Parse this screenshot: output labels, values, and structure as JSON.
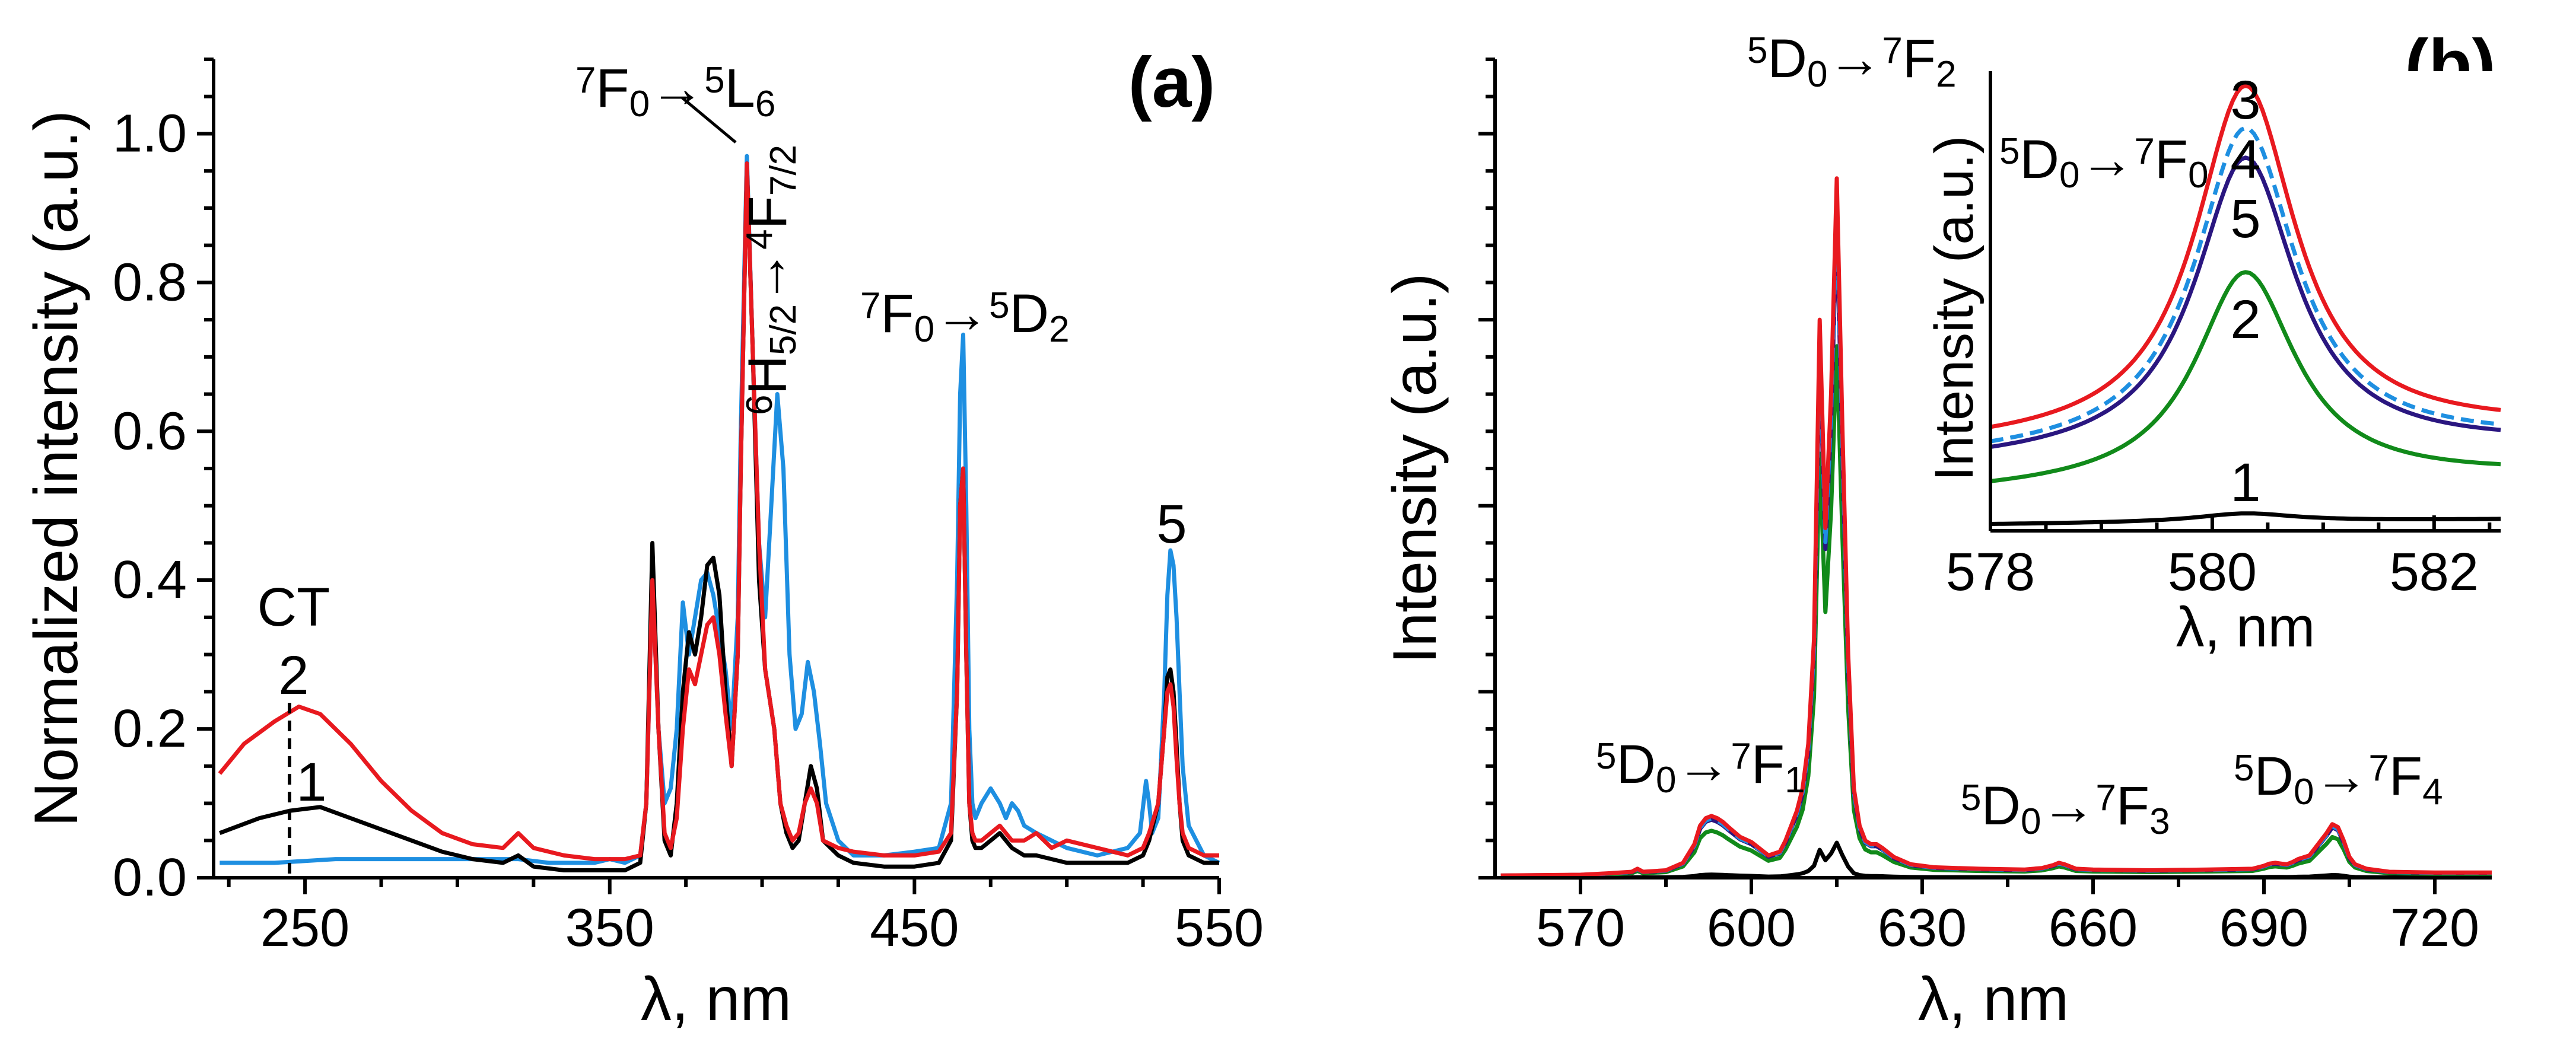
{
  "chart_data": [
    {
      "type": "line",
      "panel_label": "(a)",
      "xlabel": "λ, nm",
      "ylabel": "Normalized intensity (a.u.)",
      "xlim": [
        220,
        550
      ],
      "ylim": [
        0,
        1.1
      ],
      "xticks": [
        "250",
        "350",
        "450",
        "550"
      ],
      "yticks": [
        "0.0",
        "0.2",
        "0.4",
        "0.6",
        "0.8",
        "1.0"
      ],
      "annotations": {
        "ct": "CT",
        "curve_label_2": "2",
        "curve_label_1": "1",
        "curve_label_5": "5",
        "peak_main": "7F0→5L6",
        "peak_mid": "6H5/2→4F7/2",
        "peak_right": "7F0→5D2"
      },
      "colors": {
        "1": "#000000",
        "2": "#e8191f",
        "5": "#1e8fe1"
      },
      "series": [
        {
          "name": "1",
          "x": [
            222,
            235,
            245,
            255,
            265,
            275,
            285,
            295,
            305,
            315,
            320,
            325,
            335,
            345,
            355,
            360,
            362,
            364,
            366,
            368,
            370,
            372,
            374,
            376,
            378,
            380,
            382,
            384,
            386,
            388,
            390,
            392,
            393,
            395,
            397,
            399,
            401,
            404,
            406,
            408,
            410,
            412,
            414,
            416,
            418,
            420,
            425,
            430,
            440,
            450,
            458,
            462,
            464,
            465,
            466,
            467,
            468,
            469,
            470,
            472,
            475,
            478,
            482,
            486,
            490,
            495,
            500,
            510,
            520,
            525,
            527,
            530,
            532,
            533,
            534,
            535,
            536,
            537,
            538,
            540,
            545,
            550
          ],
          "y": [
            0.06,
            0.08,
            0.09,
            0.095,
            0.08,
            0.065,
            0.05,
            0.035,
            0.025,
            0.02,
            0.03,
            0.015,
            0.01,
            0.01,
            0.01,
            0.02,
            0.1,
            0.45,
            0.2,
            0.05,
            0.03,
            0.1,
            0.25,
            0.33,
            0.3,
            0.35,
            0.42,
            0.43,
            0.38,
            0.25,
            0.15,
            0.3,
            0.55,
            0.96,
            0.7,
            0.4,
            0.28,
            0.2,
            0.1,
            0.06,
            0.04,
            0.05,
            0.1,
            0.15,
            0.12,
            0.05,
            0.03,
            0.02,
            0.015,
            0.015,
            0.02,
            0.05,
            0.25,
            0.5,
            0.55,
            0.3,
            0.1,
            0.05,
            0.04,
            0.04,
            0.05,
            0.06,
            0.04,
            0.03,
            0.03,
            0.025,
            0.02,
            0.02,
            0.02,
            0.03,
            0.05,
            0.1,
            0.2,
            0.27,
            0.28,
            0.25,
            0.18,
            0.1,
            0.05,
            0.03,
            0.02,
            0.02
          ]
        },
        {
          "name": "2",
          "x": [
            222,
            230,
            240,
            248,
            255,
            265,
            275,
            285,
            295,
            305,
            315,
            320,
            325,
            335,
            345,
            355,
            360,
            362,
            364,
            366,
            368,
            370,
            372,
            374,
            376,
            378,
            380,
            382,
            384,
            386,
            388,
            390,
            392,
            393,
            395,
            397,
            399,
            401,
            404,
            406,
            408,
            410,
            412,
            414,
            416,
            418,
            420,
            425,
            430,
            440,
            450,
            458,
            462,
            464,
            465,
            466,
            467,
            468,
            469,
            470,
            472,
            475,
            478,
            482,
            486,
            490,
            495,
            500,
            510,
            520,
            525,
            527,
            530,
            532,
            533,
            534,
            535,
            536,
            537,
            538,
            540,
            545,
            550
          ],
          "y": [
            0.14,
            0.18,
            0.21,
            0.23,
            0.22,
            0.18,
            0.13,
            0.09,
            0.06,
            0.045,
            0.04,
            0.06,
            0.04,
            0.03,
            0.025,
            0.025,
            0.03,
            0.1,
            0.4,
            0.2,
            0.06,
            0.04,
            0.08,
            0.2,
            0.28,
            0.26,
            0.3,
            0.34,
            0.35,
            0.3,
            0.22,
            0.15,
            0.3,
            0.55,
            0.96,
            0.7,
            0.45,
            0.28,
            0.2,
            0.1,
            0.07,
            0.05,
            0.06,
            0.1,
            0.12,
            0.1,
            0.05,
            0.04,
            0.035,
            0.03,
            0.03,
            0.035,
            0.06,
            0.25,
            0.5,
            0.55,
            0.3,
            0.1,
            0.06,
            0.05,
            0.05,
            0.06,
            0.07,
            0.05,
            0.05,
            0.06,
            0.04,
            0.05,
            0.04,
            0.03,
            0.04,
            0.06,
            0.1,
            0.2,
            0.25,
            0.26,
            0.23,
            0.16,
            0.1,
            0.06,
            0.04,
            0.03,
            0.03
          ]
        },
        {
          "name": "5",
          "x": [
            222,
            240,
            260,
            280,
            300,
            320,
            330,
            345,
            350,
            355,
            360,
            362,
            364,
            366,
            368,
            370,
            372,
            374,
            376,
            378,
            380,
            382,
            384,
            386,
            388,
            390,
            392,
            393,
            395,
            397,
            399,
            401,
            403,
            405,
            407,
            409,
            411,
            413,
            415,
            417,
            419,
            421,
            425,
            430,
            440,
            450,
            458,
            462,
            464,
            465,
            466,
            467,
            468,
            469,
            470,
            472,
            475,
            478,
            480,
            482,
            484,
            486,
            490,
            495,
            500,
            510,
            520,
            524,
            526,
            527,
            528,
            530,
            532,
            533,
            534,
            535,
            536,
            537,
            538,
            540,
            545,
            550
          ],
          "y": [
            0.02,
            0.02,
            0.025,
            0.025,
            0.025,
            0.025,
            0.02,
            0.02,
            0.025,
            0.02,
            0.03,
            0.1,
            0.4,
            0.2,
            0.1,
            0.12,
            0.2,
            0.37,
            0.3,
            0.35,
            0.4,
            0.41,
            0.38,
            0.33,
            0.28,
            0.2,
            0.35,
            0.6,
            0.97,
            0.7,
            0.45,
            0.35,
            0.5,
            0.65,
            0.55,
            0.3,
            0.2,
            0.22,
            0.29,
            0.25,
            0.18,
            0.1,
            0.05,
            0.03,
            0.03,
            0.035,
            0.04,
            0.1,
            0.4,
            0.65,
            0.73,
            0.5,
            0.2,
            0.1,
            0.08,
            0.1,
            0.12,
            0.1,
            0.08,
            0.1,
            0.09,
            0.07,
            0.06,
            0.05,
            0.04,
            0.03,
            0.04,
            0.06,
            0.13,
            0.1,
            0.06,
            0.08,
            0.25,
            0.38,
            0.44,
            0.42,
            0.35,
            0.25,
            0.15,
            0.07,
            0.03,
            0.02
          ]
        }
      ]
    },
    {
      "type": "line",
      "panel_label": "(b)",
      "xlabel": "λ, nm",
      "ylabel": "Intensity (a.u.)",
      "xlim": [
        555,
        730
      ],
      "ylim": [
        0,
        1.1
      ],
      "xticks": [
        "570",
        "600",
        "630",
        "660",
        "690",
        "720"
      ],
      "annotations": {
        "f2": "5D0→7F2",
        "f1": "5D0→7F1",
        "f3": "5D0→7F3",
        "f4": "5D0→7F4"
      },
      "colors": {
        "1": "#000000",
        "2": "#118a1a",
        "3": "#e8191f",
        "4": "#1e8fe1",
        "5": "#2a1680"
      },
      "shape": {
        "x": [
          556,
          570,
          575,
          579,
          580,
          581,
          585,
          588,
          590,
          591,
          592,
          593,
          594,
          595,
          596,
          598,
          600,
          603,
          605,
          606,
          607,
          608,
          609,
          610,
          611,
          612,
          613,
          614,
          615,
          616,
          617,
          618,
          619,
          620,
          621,
          622,
          623,
          625,
          628,
          632,
          640,
          648,
          651,
          653,
          654,
          655,
          657,
          660,
          670,
          680,
          688,
          690,
          691,
          692,
          693,
          694,
          695,
          696,
          698,
          700,
          701,
          702,
          703,
          704,
          705,
          706,
          708,
          712,
          720,
          730
        ],
        "y": [
          0.003,
          0.004,
          0.006,
          0.008,
          0.012,
          0.008,
          0.01,
          0.02,
          0.045,
          0.07,
          0.08,
          0.083,
          0.08,
          0.075,
          0.068,
          0.055,
          0.048,
          0.03,
          0.035,
          0.05,
          0.07,
          0.09,
          0.12,
          0.18,
          0.32,
          0.75,
          0.47,
          0.65,
          0.94,
          0.6,
          0.3,
          0.12,
          0.07,
          0.05,
          0.045,
          0.045,
          0.04,
          0.028,
          0.018,
          0.014,
          0.012,
          0.011,
          0.013,
          0.017,
          0.02,
          0.018,
          0.012,
          0.011,
          0.01,
          0.011,
          0.012,
          0.016,
          0.019,
          0.02,
          0.019,
          0.018,
          0.021,
          0.025,
          0.03,
          0.05,
          0.06,
          0.072,
          0.068,
          0.05,
          0.028,
          0.018,
          0.012,
          0.008,
          0.007,
          0.007
        ]
      },
      "series": [
        {
          "name": "1",
          "scale": 0.05
        },
        {
          "name": "2",
          "scale": 0.76
        },
        {
          "name": "5",
          "scale": 0.94
        },
        {
          "name": "4",
          "scale": 0.96
        },
        {
          "name": "3",
          "scale": 1.0
        }
      ]
    },
    {
      "type": "line",
      "inset": true,
      "xlabel": "λ, nm",
      "ylabel": "Intensity (a.u.)",
      "xlim": [
        578,
        582.6
      ],
      "ylim": [
        0,
        1
      ],
      "xticks": [
        "578",
        "580",
        "582"
      ],
      "annotation": "5D0→7F0",
      "series": [
        {
          "name": "1",
          "base": 0.015,
          "amp": 0.02,
          "style": "solid"
        },
        {
          "name": "2",
          "base": 0.09,
          "amp": 0.5,
          "style": "solid"
        },
        {
          "name": "5",
          "base": 0.16,
          "amp": 0.7,
          "style": "solid"
        },
        {
          "name": "4",
          "base": 0.17,
          "amp": 0.76,
          "style": "dashed"
        },
        {
          "name": "3",
          "base": 0.2,
          "amp": 0.83,
          "style": "solid"
        }
      ]
    }
  ]
}
